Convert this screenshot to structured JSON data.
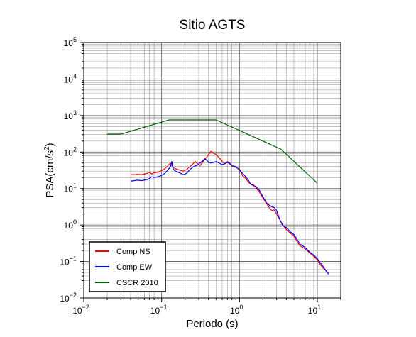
{
  "chart_data": {
    "type": "line",
    "title": "Sitio AGTS",
    "xlabel": "Periodo (s)",
    "ylabel": "PSA(cm/s2)",
    "ylabel_base": "PSA(cm/s",
    "ylabel_sup": "2",
    "ylabel_end": ")",
    "x_scale": "log",
    "y_scale": "log",
    "xlim": [
      0.01,
      20
    ],
    "ylim": [
      0.01,
      100000
    ],
    "grid": true,
    "legend_position": "bottom-left",
    "x_ticks": [
      {
        "value": 0.01,
        "base": "10",
        "exp": "−2"
      },
      {
        "value": 0.1,
        "base": "10",
        "exp": "−1"
      },
      {
        "value": 1,
        "base": "10",
        "exp": "0"
      },
      {
        "value": 10,
        "base": "10",
        "exp": "1"
      }
    ],
    "y_ticks": [
      {
        "value": 0.01,
        "base": "10",
        "exp": "−2"
      },
      {
        "value": 0.1,
        "base": "10",
        "exp": "−1"
      },
      {
        "value": 1,
        "base": "10",
        "exp": "0"
      },
      {
        "value": 10,
        "base": "10",
        "exp": "1"
      },
      {
        "value": 100,
        "base": "10",
        "exp": "2"
      },
      {
        "value": 1000,
        "base": "10",
        "exp": "3"
      },
      {
        "value": 10000,
        "base": "10",
        "exp": "4"
      },
      {
        "value": 100000,
        "base": "10",
        "exp": "5"
      }
    ],
    "series": [
      {
        "name": "Comp NS",
        "color": "#ff0000",
        "points": [
          [
            0.04,
            24
          ],
          [
            0.045,
            24
          ],
          [
            0.05,
            24.5
          ],
          [
            0.055,
            24
          ],
          [
            0.06,
            25
          ],
          [
            0.065,
            26
          ],
          [
            0.07,
            28
          ],
          [
            0.075,
            25
          ],
          [
            0.08,
            27
          ],
          [
            0.09,
            28
          ],
          [
            0.1,
            31
          ],
          [
            0.11,
            35
          ],
          [
            0.12,
            42
          ],
          [
            0.13,
            50
          ],
          [
            0.14,
            38
          ],
          [
            0.15,
            35
          ],
          [
            0.17,
            32
          ],
          [
            0.19,
            30
          ],
          [
            0.21,
            33
          ],
          [
            0.23,
            40
          ],
          [
            0.25,
            46
          ],
          [
            0.27,
            55
          ],
          [
            0.29,
            48
          ],
          [
            0.31,
            42
          ],
          [
            0.33,
            50
          ],
          [
            0.36,
            65
          ],
          [
            0.38,
            72
          ],
          [
            0.4,
            85
          ],
          [
            0.43,
            105
          ],
          [
            0.46,
            95
          ],
          [
            0.5,
            85
          ],
          [
            0.55,
            70
          ],
          [
            0.6,
            55
          ],
          [
            0.65,
            48
          ],
          [
            0.7,
            55
          ],
          [
            0.75,
            50
          ],
          [
            0.8,
            42
          ],
          [
            0.9,
            38
          ],
          [
            1.0,
            34
          ],
          [
            1.1,
            22
          ],
          [
            1.2,
            19
          ],
          [
            1.3,
            15
          ],
          [
            1.4,
            13
          ],
          [
            1.5,
            13
          ],
          [
            1.6,
            11
          ],
          [
            1.8,
            8
          ],
          [
            2.0,
            5.5
          ],
          [
            2.2,
            4
          ],
          [
            2.4,
            3
          ],
          [
            2.6,
            2.5
          ],
          [
            2.8,
            2.6
          ],
          [
            3.0,
            2.0
          ],
          [
            3.3,
            1.4
          ],
          [
            3.6,
            1.0
          ],
          [
            4.0,
            0.75
          ],
          [
            4.5,
            0.6
          ],
          [
            5.0,
            0.5
          ],
          [
            5.5,
            0.35
          ],
          [
            6.0,
            0.27
          ],
          [
            7.0,
            0.22
          ],
          [
            8.0,
            0.17
          ],
          [
            9.0,
            0.14
          ],
          [
            10,
            0.11
          ],
          [
            11,
            0.08
          ],
          [
            12,
            0.065
          ],
          [
            13,
            0.055
          ],
          [
            14,
            0.045
          ]
        ]
      },
      {
        "name": "Comp EW",
        "color": "#0000ff",
        "points": [
          [
            0.04,
            16
          ],
          [
            0.045,
            16.5
          ],
          [
            0.05,
            17
          ],
          [
            0.055,
            16.5
          ],
          [
            0.06,
            17
          ],
          [
            0.065,
            17.5
          ],
          [
            0.07,
            19
          ],
          [
            0.075,
            21
          ],
          [
            0.08,
            20
          ],
          [
            0.09,
            21
          ],
          [
            0.1,
            23
          ],
          [
            0.11,
            26
          ],
          [
            0.12,
            32
          ],
          [
            0.13,
            40
          ],
          [
            0.135,
            55
          ],
          [
            0.14,
            35
          ],
          [
            0.15,
            30
          ],
          [
            0.17,
            27
          ],
          [
            0.19,
            24
          ],
          [
            0.21,
            26
          ],
          [
            0.23,
            33
          ],
          [
            0.25,
            38
          ],
          [
            0.27,
            42
          ],
          [
            0.29,
            44
          ],
          [
            0.31,
            50
          ],
          [
            0.33,
            55
          ],
          [
            0.36,
            65
          ],
          [
            0.38,
            60
          ],
          [
            0.4,
            52
          ],
          [
            0.43,
            50
          ],
          [
            0.46,
            52
          ],
          [
            0.5,
            55
          ],
          [
            0.55,
            50
          ],
          [
            0.6,
            45
          ],
          [
            0.65,
            48
          ],
          [
            0.7,
            52
          ],
          [
            0.75,
            48
          ],
          [
            0.8,
            42
          ],
          [
            0.9,
            40
          ],
          [
            1.0,
            32
          ],
          [
            1.1,
            26
          ],
          [
            1.2,
            21
          ],
          [
            1.3,
            17
          ],
          [
            1.4,
            13
          ],
          [
            1.5,
            12
          ],
          [
            1.6,
            11.5
          ],
          [
            1.8,
            9
          ],
          [
            2.0,
            6
          ],
          [
            2.2,
            4.2
          ],
          [
            2.4,
            3.5
          ],
          [
            2.6,
            3.2
          ],
          [
            2.8,
            3.0
          ],
          [
            3.0,
            2.5
          ],
          [
            3.3,
            1.4
          ],
          [
            3.6,
            0.95
          ],
          [
            4.0,
            0.85
          ],
          [
            4.5,
            0.65
          ],
          [
            5.0,
            0.55
          ],
          [
            5.5,
            0.4
          ],
          [
            6.0,
            0.3
          ],
          [
            7.0,
            0.24
          ],
          [
            8.0,
            0.18
          ],
          [
            9.0,
            0.15
          ],
          [
            10,
            0.12
          ],
          [
            11,
            0.09
          ],
          [
            12,
            0.07
          ],
          [
            13,
            0.055
          ],
          [
            14,
            0.045
          ]
        ]
      },
      {
        "name": "CSCR 2010",
        "color": "#006400",
        "points": [
          [
            0.02,
            310
          ],
          [
            0.03,
            310
          ],
          [
            0.125,
            760
          ],
          [
            0.5,
            760
          ],
          [
            3.4,
            120
          ],
          [
            10,
            14
          ]
        ]
      }
    ]
  }
}
